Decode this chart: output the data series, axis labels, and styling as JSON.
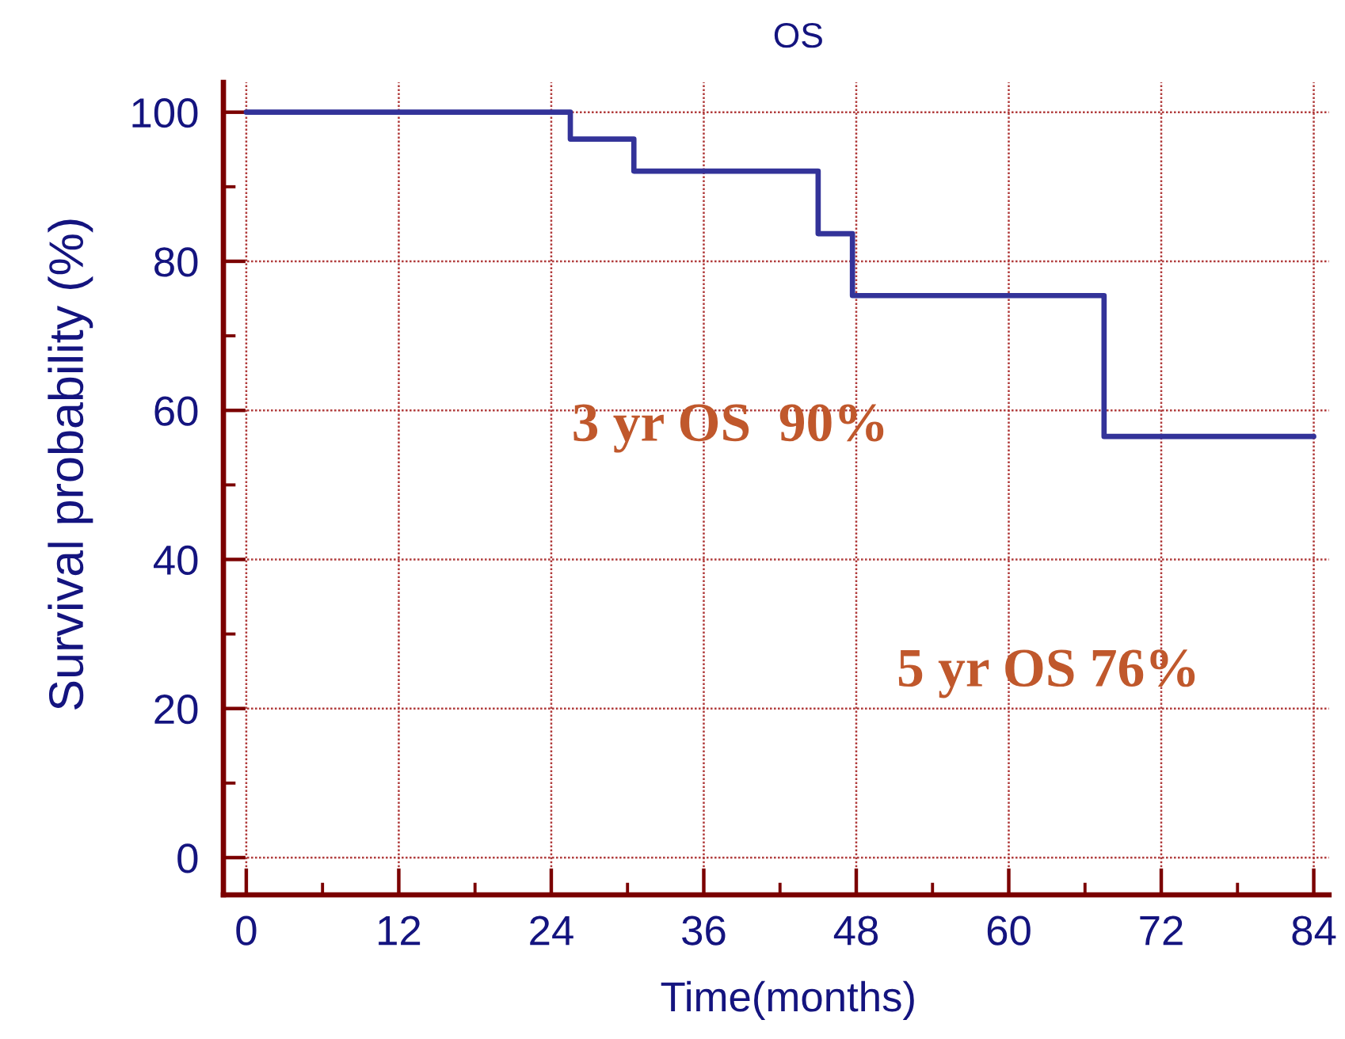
{
  "chart_data": {
    "type": "step",
    "title": "OS",
    "xlabel": "Time(months)",
    "ylabel": "Survival probability (%)",
    "x": [
      0,
      25.5,
      30.5,
      45,
      47.7,
      67.5,
      84
    ],
    "series": [
      {
        "color": "#333399",
        "values": [
          100,
          96.4,
          92.1,
          83.7,
          75.4,
          56.5,
          56.5
        ]
      }
    ],
    "xlim": [
      -1.8,
      85.2
    ],
    "ylim": [
      -5,
      104
    ],
    "xticks": [
      0,
      {
        "value": 6,
        "label": null
      },
      12,
      {
        "value": 18,
        "label": null
      },
      24,
      {
        "value": 30,
        "label": null
      },
      36,
      {
        "value": 42,
        "label": null
      },
      48,
      {
        "value": 54,
        "label": null
      },
      60,
      {
        "value": 66,
        "label": null
      },
      72,
      {
        "value": 78,
        "label": null
      },
      84
    ],
    "yticks": [
      0,
      {
        "value": 10,
        "label": null
      },
      20,
      {
        "value": 30,
        "label": null
      },
      40,
      {
        "value": 50,
        "label": null
      },
      60,
      {
        "value": 70,
        "label": null
      },
      80,
      {
        "value": 90,
        "label": null
      },
      100
    ],
    "grid": true,
    "annotations": [
      "3 yr OS  90%",
      "5 yr OS 76%"
    ]
  }
}
